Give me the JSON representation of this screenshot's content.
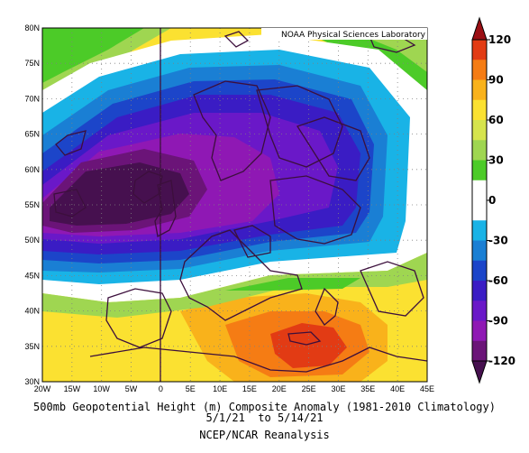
{
  "map": {
    "credit": "NOAA Physical Sciences Laboratory",
    "lat_labels": [
      "80N",
      "75N",
      "70N",
      "65N",
      "60N",
      "55N",
      "50N",
      "45N",
      "40N",
      "35N",
      "30N"
    ],
    "lon_labels": [
      "20W",
      "15W",
      "10W",
      "5W",
      "0",
      "5E",
      "10E",
      "15E",
      "20E",
      "25E",
      "30E",
      "35E",
      "40E",
      "45E"
    ],
    "extent": {
      "lon": [
        -20,
        45
      ],
      "lat": [
        30,
        80
      ]
    }
  },
  "colorbar": {
    "labels": [
      "120",
      "90",
      "60",
      "30",
      "0",
      "-30",
      "-60",
      "-90",
      "-120"
    ],
    "colors": [
      "#9b0f14",
      "#e23b14",
      "#f57c14",
      "#f9b21b",
      "#fbe131",
      "#d6e44d",
      "#9fd651",
      "#4ccb28",
      "#ffffff",
      "#ffffff",
      "#19b3e6",
      "#1a7fd4",
      "#1c45c9",
      "#3a1cc4",
      "#6a18c8",
      "#8f18b4",
      "#6b1478",
      "#46104f"
    ]
  },
  "caption": {
    "line1": "500mb Geopotential Height (m) Composite Anomaly (1981-2010 Climatology)",
    "line2": "5/1/21  to 5/14/21",
    "line3": "NCEP/NCAR Reanalysis"
  }
}
